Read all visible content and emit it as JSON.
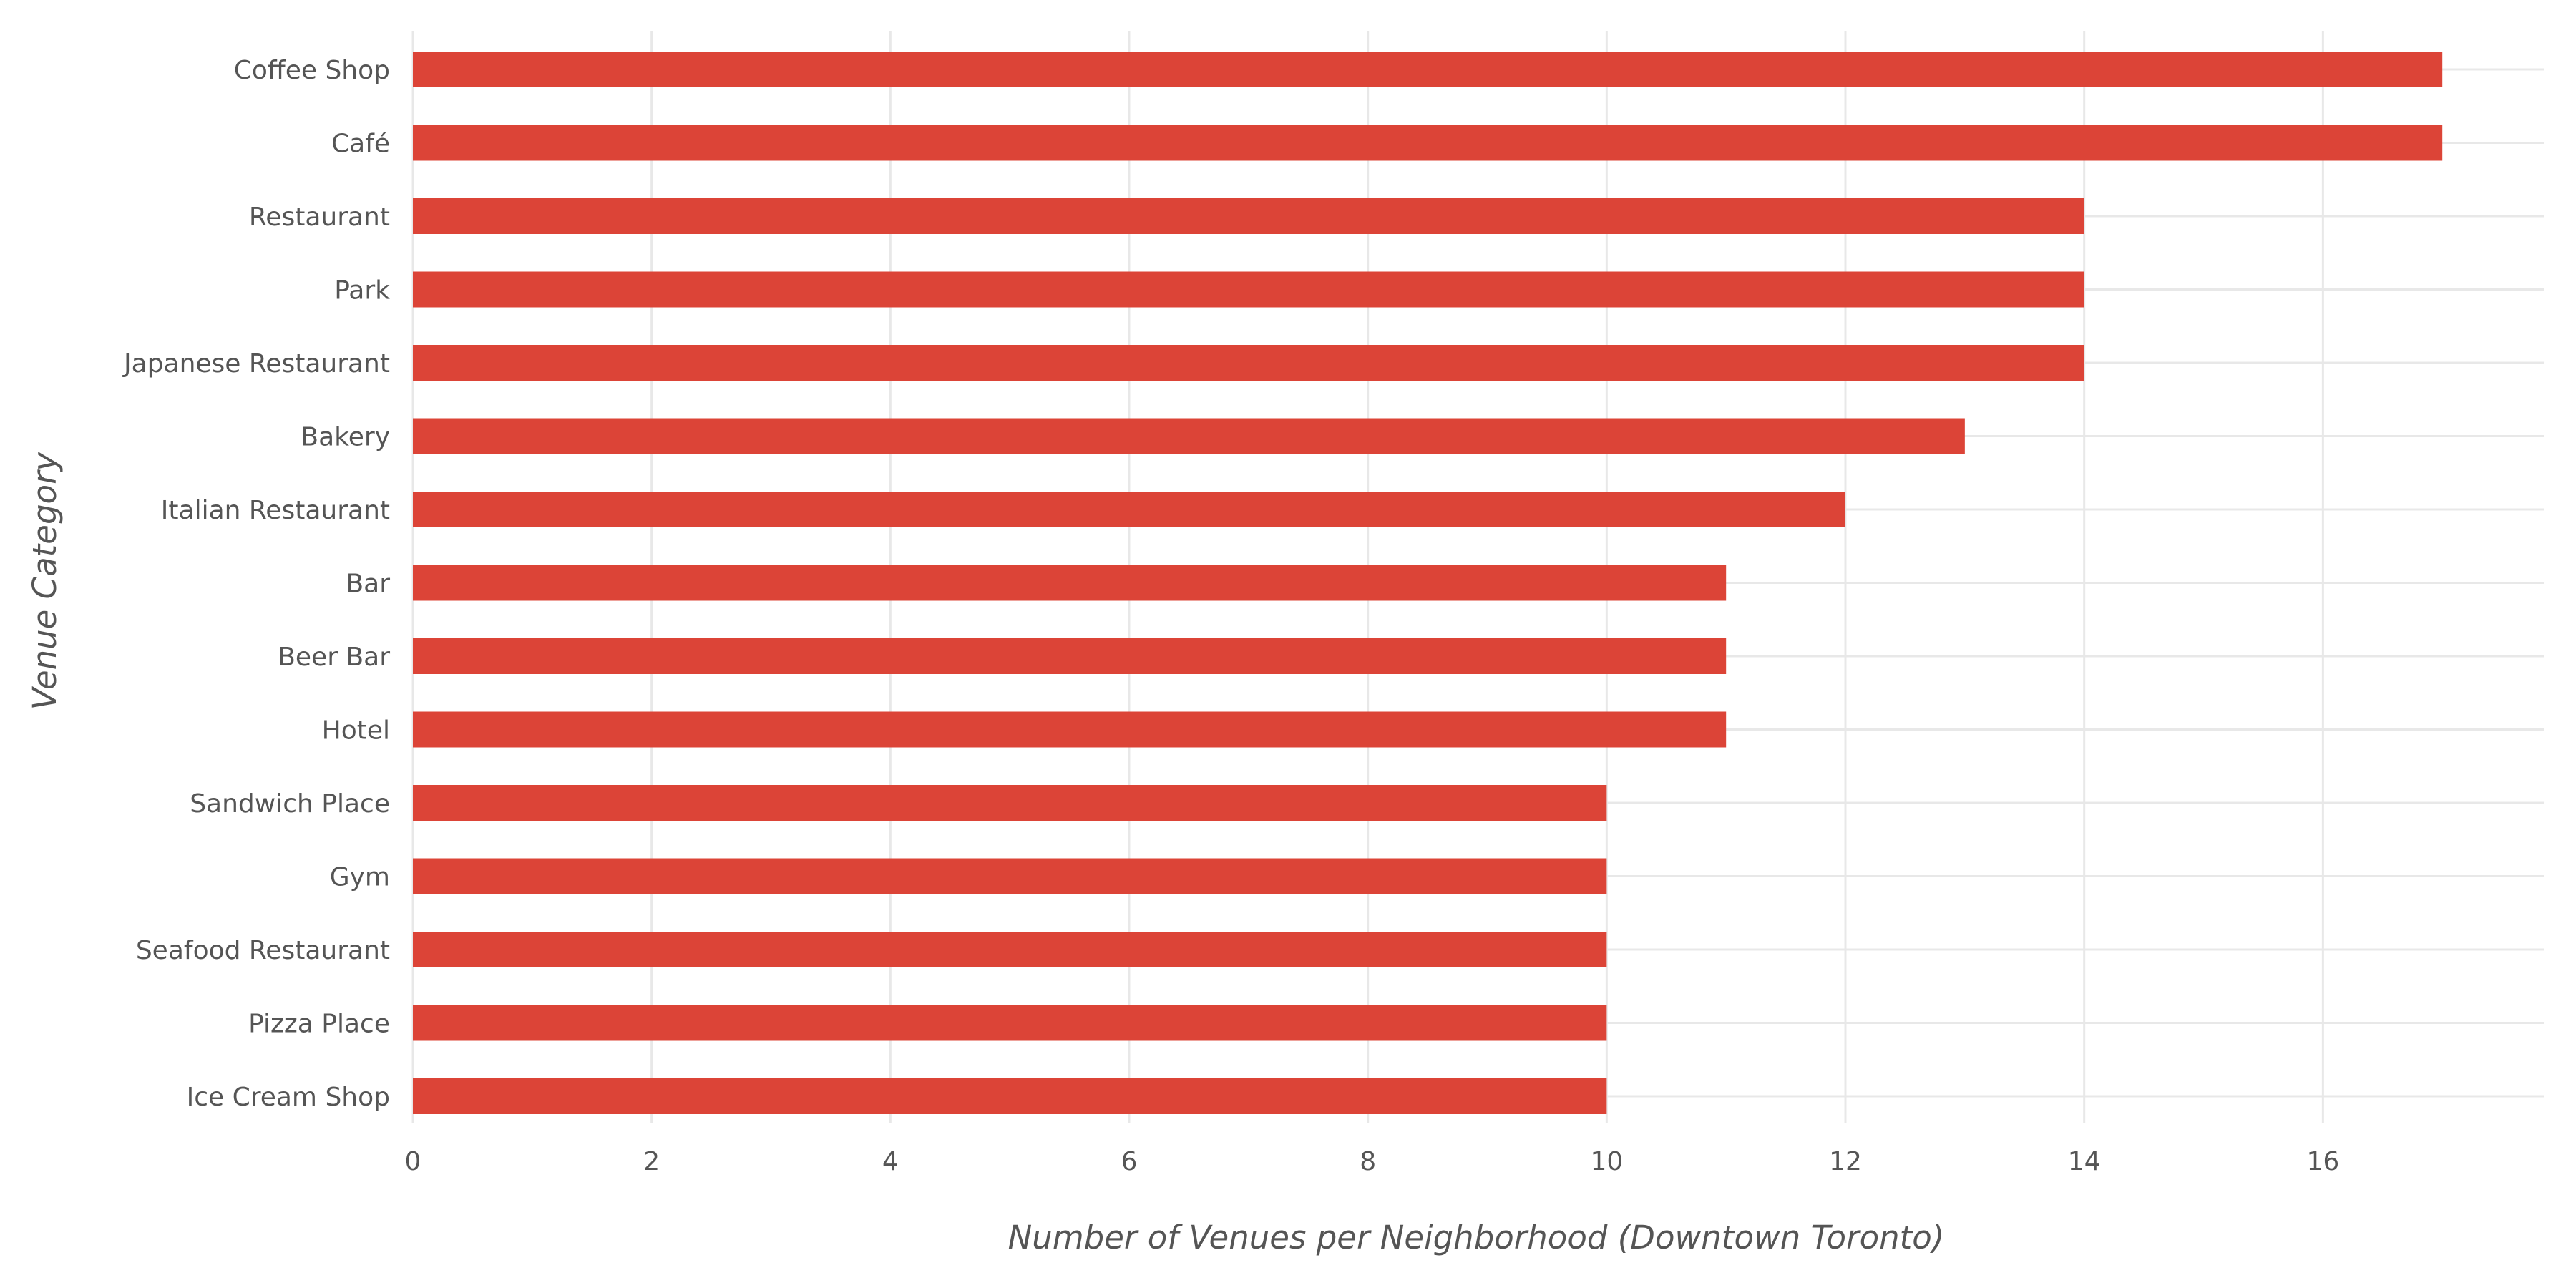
{
  "chart_data": {
    "type": "bar",
    "orientation": "horizontal",
    "categories": [
      "Coffee Shop",
      "Café",
      "Restaurant",
      "Park",
      "Japanese Restaurant",
      "Bakery",
      "Italian Restaurant",
      "Bar",
      "Beer Bar",
      "Hotel",
      "Sandwich Place",
      "Gym",
      "Seafood Restaurant",
      "Pizza Place",
      "Ice Cream Shop"
    ],
    "values": [
      17,
      17,
      14,
      14,
      14,
      13,
      12,
      11,
      11,
      11,
      10,
      10,
      10,
      10,
      10
    ],
    "x_ticks": [
      0,
      2,
      4,
      6,
      8,
      10,
      12,
      14,
      16
    ],
    "xlim": [
      0,
      17.85
    ],
    "xlabel": "Number of Venues per Neighborhood (Downtown Toronto)",
    "ylabel": "Venue Category",
    "title": "",
    "grid": true,
    "bar_color": "#dc4437",
    "grid_color": "#e8e8e8",
    "text_color": "#555555"
  }
}
